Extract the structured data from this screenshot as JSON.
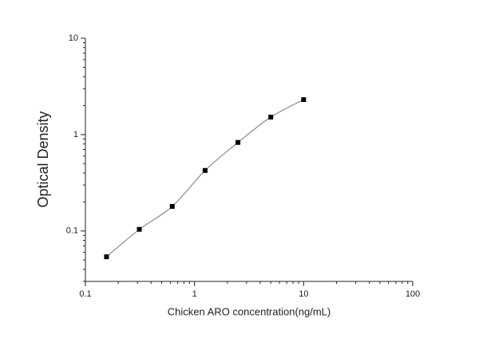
{
  "chart_data": {
    "type": "scatter",
    "xlabel": "Chicken ARO concentration(ng/mL)",
    "ylabel": "Optical Density",
    "x": [
      0.156,
      0.312,
      0.625,
      1.25,
      2.5,
      5,
      10
    ],
    "values": [
      0.054,
      0.104,
      0.18,
      0.425,
      0.83,
      1.52,
      2.31
    ],
    "color": "#000000",
    "line_color": "#777777",
    "connect": true,
    "xscale": "log",
    "yscale": "log",
    "xlim": [
      0.1,
      100
    ],
    "xticks": [
      0.1,
      1,
      10,
      100
    ],
    "ylim": [
      0.03,
      10
    ],
    "yticks": [
      0.1,
      1,
      10
    ],
    "grid": false
  }
}
